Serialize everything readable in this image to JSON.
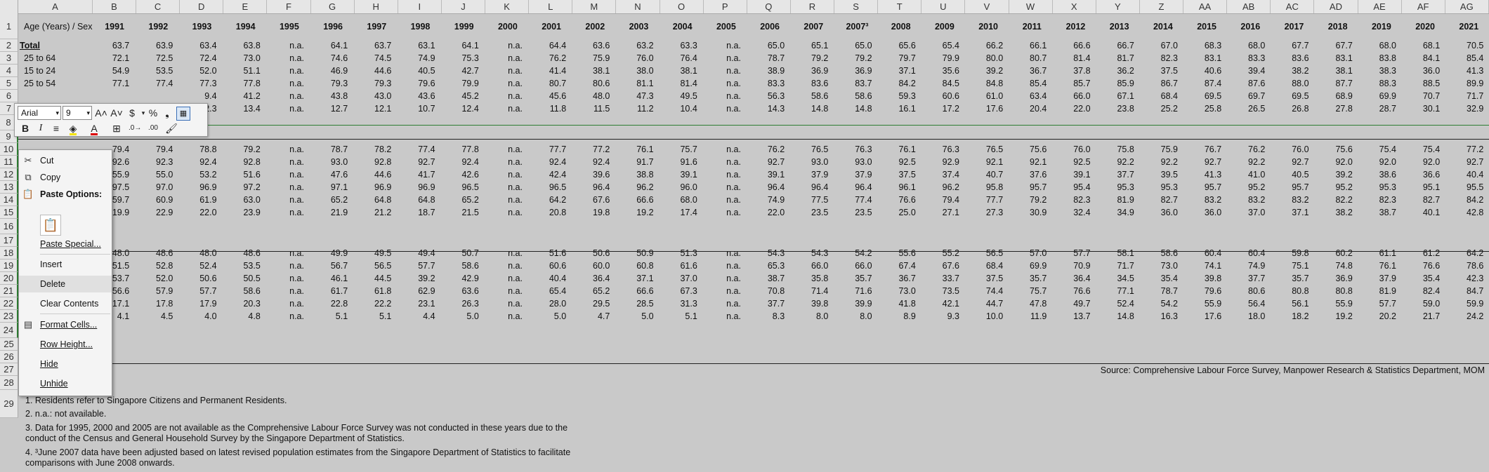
{
  "columns": [
    "A",
    "B",
    "C",
    "D",
    "E",
    "F",
    "G",
    "H",
    "I",
    "J",
    "K",
    "L",
    "M",
    "N",
    "O",
    "P",
    "Q",
    "R",
    "S",
    "T",
    "U",
    "V",
    "W",
    "X",
    "Y",
    "Z",
    "AA",
    "AB",
    "AC",
    "AD",
    "AE",
    "AF",
    "AG"
  ],
  "row_numbers": [
    "1",
    "2",
    "3",
    "4",
    "5",
    "6",
    "7",
    "8",
    "9",
    "10",
    "11",
    "12",
    "13",
    "14",
    "15",
    "16",
    "17",
    "18",
    "19",
    "20",
    "21",
    "22",
    "23",
    "24",
    "25",
    "26",
    "27",
    "28",
    "29"
  ],
  "header": {
    "label": "Age (Years) / Sex",
    "years": [
      "1991",
      "1992",
      "1993",
      "1994",
      "1995",
      "1996",
      "1997",
      "1998",
      "1999",
      "2000",
      "2001",
      "2002",
      "2003",
      "2004",
      "2005",
      "2006",
      "2007",
      "2007³",
      "2008",
      "2009",
      "2010",
      "2011",
      "2012",
      "2013",
      "2014",
      "2015",
      "2016",
      "2017",
      "2018",
      "2019",
      "2020",
      "2021"
    ]
  },
  "rows_top": [
    {
      "label": "Total",
      "values": [
        "63.7",
        "63.9",
        "63.4",
        "63.8",
        "n.a.",
        "64.1",
        "63.7",
        "63.1",
        "64.1",
        "n.a.",
        "64.4",
        "63.6",
        "63.2",
        "63.3",
        "n.a.",
        "65.0",
        "65.1",
        "65.0",
        "65.6",
        "65.4",
        "66.2",
        "66.1",
        "66.6",
        "66.7",
        "67.0",
        "68.3",
        "68.0",
        "67.7",
        "67.7",
        "68.0",
        "68.1",
        "70.5"
      ]
    },
    {
      "label": "25 to 64",
      "values": [
        "72.1",
        "72.5",
        "72.4",
        "73.0",
        "n.a.",
        "74.6",
        "74.5",
        "74.9",
        "75.3",
        "n.a.",
        "76.2",
        "75.9",
        "76.0",
        "76.4",
        "n.a.",
        "78.7",
        "79.2",
        "79.2",
        "79.7",
        "79.9",
        "80.0",
        "80.7",
        "81.4",
        "81.7",
        "82.3",
        "83.1",
        "83.3",
        "83.6",
        "83.1",
        "83.8",
        "84.1",
        "85.4"
      ]
    },
    {
      "label": "15 to 24",
      "values": [
        "54.9",
        "53.5",
        "52.0",
        "51.1",
        "n.a.",
        "46.9",
        "44.6",
        "40.5",
        "42.7",
        "n.a.",
        "41.4",
        "38.1",
        "38.0",
        "38.1",
        "n.a.",
        "38.9",
        "36.9",
        "36.9",
        "37.1",
        "35.6",
        "39.2",
        "36.7",
        "37.8",
        "36.2",
        "37.5",
        "40.6",
        "39.4",
        "38.2",
        "38.1",
        "38.3",
        "36.0",
        "41.3"
      ]
    },
    {
      "label": "25 to 54",
      "values": [
        "77.1",
        "77.4",
        "77.3",
        "77.8",
        "n.a.",
        "79.3",
        "79.3",
        "79.6",
        "79.9",
        "n.a.",
        "80.7",
        "80.6",
        "81.1",
        "81.4",
        "n.a.",
        "83.3",
        "83.6",
        "83.7",
        "84.2",
        "84.5",
        "84.8",
        "85.4",
        "85.7",
        "85.9",
        "86.7",
        "87.4",
        "87.6",
        "88.0",
        "87.7",
        "88.3",
        "88.5",
        "89.9"
      ]
    },
    {
      "label": "",
      "values": [
        "",
        "",
        "9.4",
        "41.2",
        "n.a.",
        "43.8",
        "43.0",
        "43.6",
        "45.2",
        "n.a.",
        "45.6",
        "48.0",
        "47.3",
        "49.5",
        "n.a.",
        "56.3",
        "58.6",
        "58.6",
        "59.3",
        "60.6",
        "61.0",
        "63.4",
        "66.0",
        "67.1",
        "68.4",
        "69.5",
        "69.7",
        "69.5",
        "68.9",
        "69.9",
        "70.7",
        "71.7"
      ]
    },
    {
      "label": "",
      "values": [
        "",
        "",
        "2.3",
        "13.4",
        "n.a.",
        "12.7",
        "12.1",
        "10.7",
        "12.4",
        "n.a.",
        "11.8",
        "11.5",
        "11.2",
        "10.4",
        "n.a.",
        "14.3",
        "14.8",
        "14.8",
        "16.1",
        "17.2",
        "17.6",
        "20.4",
        "22.0",
        "23.8",
        "25.2",
        "25.8",
        "26.5",
        "26.8",
        "27.8",
        "28.7",
        "30.1",
        "32.9"
      ]
    }
  ],
  "rows_male": [
    [
      "79.4",
      "79.4",
      "78.8",
      "79.2",
      "n.a.",
      "78.7",
      "78.2",
      "77.4",
      "77.8",
      "n.a.",
      "77.7",
      "77.2",
      "76.1",
      "75.7",
      "n.a.",
      "76.2",
      "76.5",
      "76.3",
      "76.1",
      "76.3",
      "76.5",
      "75.6",
      "76.0",
      "75.8",
      "75.9",
      "76.7",
      "76.2",
      "76.0",
      "75.6",
      "75.4",
      "75.4",
      "77.2"
    ],
    [
      "92.6",
      "92.3",
      "92.4",
      "92.8",
      "n.a.",
      "93.0",
      "92.8",
      "92.7",
      "92.4",
      "n.a.",
      "92.4",
      "92.4",
      "91.7",
      "91.6",
      "n.a.",
      "92.7",
      "93.0",
      "93.0",
      "92.5",
      "92.9",
      "92.1",
      "92.1",
      "92.5",
      "92.2",
      "92.2",
      "92.7",
      "92.2",
      "92.7",
      "92.0",
      "92.0",
      "92.0",
      "92.7"
    ],
    [
      "55.9",
      "55.0",
      "53.2",
      "51.6",
      "n.a.",
      "47.6",
      "44.6",
      "41.7",
      "42.6",
      "n.a.",
      "42.4",
      "39.6",
      "38.8",
      "39.1",
      "n.a.",
      "39.1",
      "37.9",
      "37.9",
      "37.5",
      "37.4",
      "40.7",
      "37.6",
      "39.1",
      "37.7",
      "39.5",
      "41.3",
      "41.0",
      "40.5",
      "39.2",
      "38.6",
      "36.6",
      "40.4"
    ],
    [
      "97.5",
      "97.0",
      "96.9",
      "97.2",
      "n.a.",
      "97.1",
      "96.9",
      "96.9",
      "96.5",
      "n.a.",
      "96.5",
      "96.4",
      "96.2",
      "96.0",
      "n.a.",
      "96.4",
      "96.4",
      "96.4",
      "96.1",
      "96.2",
      "95.8",
      "95.7",
      "95.4",
      "95.3",
      "95.3",
      "95.7",
      "95.2",
      "95.7",
      "95.2",
      "95.3",
      "95.1",
      "95.5"
    ],
    [
      "59.7",
      "60.9",
      "61.9",
      "63.0",
      "n.a.",
      "65.2",
      "64.8",
      "64.8",
      "65.2",
      "n.a.",
      "64.2",
      "67.6",
      "66.6",
      "68.0",
      "n.a.",
      "74.9",
      "77.5",
      "77.4",
      "76.6",
      "79.4",
      "77.7",
      "79.2",
      "82.3",
      "81.9",
      "82.7",
      "83.2",
      "83.2",
      "83.2",
      "82.2",
      "82.3",
      "82.7",
      "84.2"
    ],
    [
      "19.9",
      "22.9",
      "22.0",
      "23.9",
      "n.a.",
      "21.9",
      "21.2",
      "18.7",
      "21.5",
      "n.a.",
      "20.8",
      "19.8",
      "19.2",
      "17.4",
      "n.a.",
      "22.0",
      "23.5",
      "23.5",
      "25.0",
      "27.1",
      "27.3",
      "30.9",
      "32.4",
      "34.9",
      "36.0",
      "36.0",
      "37.0",
      "37.1",
      "38.2",
      "38.7",
      "40.1",
      "42.8"
    ]
  ],
  "rows_female": [
    [
      "48.0",
      "48.6",
      "48.0",
      "48.6",
      "n.a.",
      "49.9",
      "49.5",
      "49.4",
      "50.7",
      "n.a.",
      "51.6",
      "50.6",
      "50.9",
      "51.3",
      "n.a.",
      "54.3",
      "54.3",
      "54.2",
      "55.6",
      "55.2",
      "56.5",
      "57.0",
      "57.7",
      "58.1",
      "58.6",
      "60.4",
      "60.4",
      "59.8",
      "60.2",
      "61.1",
      "61.2",
      "64.2"
    ],
    [
      "51.5",
      "52.8",
      "52.4",
      "53.5",
      "n.a.",
      "56.7",
      "56.5",
      "57.7",
      "58.6",
      "n.a.",
      "60.6",
      "60.0",
      "60.8",
      "61.6",
      "n.a.",
      "65.3",
      "66.0",
      "66.0",
      "67.4",
      "67.6",
      "68.4",
      "69.9",
      "70.9",
      "71.7",
      "73.0",
      "74.1",
      "74.9",
      "75.1",
      "74.8",
      "76.1",
      "76.6",
      "78.6"
    ],
    [
      "53.7",
      "52.0",
      "50.6",
      "50.5",
      "n.a.",
      "46.1",
      "44.5",
      "39.2",
      "42.9",
      "n.a.",
      "40.4",
      "36.4",
      "37.1",
      "37.0",
      "n.a.",
      "38.7",
      "35.8",
      "35.7",
      "36.7",
      "33.7",
      "37.5",
      "35.7",
      "36.4",
      "34.5",
      "35.4",
      "39.8",
      "37.7",
      "35.7",
      "36.9",
      "37.9",
      "35.4",
      "42.3"
    ],
    [
      "56.6",
      "57.9",
      "57.7",
      "58.6",
      "n.a.",
      "61.7",
      "61.8",
      "62.9",
      "63.6",
      "n.a.",
      "65.4",
      "65.2",
      "66.6",
      "67.3",
      "n.a.",
      "70.8",
      "71.4",
      "71.6",
      "73.0",
      "73.5",
      "74.4",
      "75.7",
      "76.6",
      "77.1",
      "78.7",
      "79.6",
      "80.6",
      "80.8",
      "80.8",
      "81.9",
      "82.4",
      "84.7"
    ],
    [
      "17.1",
      "17.8",
      "17.9",
      "20.3",
      "n.a.",
      "22.8",
      "22.2",
      "23.1",
      "26.3",
      "n.a.",
      "28.0",
      "29.5",
      "28.5",
      "31.3",
      "n.a.",
      "37.7",
      "39.8",
      "39.9",
      "41.8",
      "42.1",
      "44.7",
      "47.8",
      "49.7",
      "52.4",
      "54.2",
      "55.9",
      "56.4",
      "56.1",
      "55.9",
      "57.7",
      "59.0",
      "59.9"
    ],
    [
      "4.1",
      "4.5",
      "4.0",
      "4.8",
      "n.a.",
      "5.1",
      "5.1",
      "4.4",
      "5.0",
      "n.a.",
      "5.0",
      "4.7",
      "5.0",
      "5.1",
      "n.a.",
      "8.3",
      "8.0",
      "8.0",
      "8.9",
      "9.3",
      "10.0",
      "11.9",
      "13.7",
      "14.8",
      "16.3",
      "17.6",
      "18.0",
      "18.2",
      "19.2",
      "20.2",
      "21.7",
      "24.2"
    ]
  ],
  "source": "Source: Comprehensive Labour Force Survey, Manpower Research & Statistics Department, MOM",
  "notes": [
    "1. Residents refer to Singapore Citizens and Permanent Residents.",
    "2. n.a.: not available.",
    "3. Data for 1995, 2000 and 2005 are not available as the Comprehensive Labour Force Survey was not conducted in these years due to the",
    "conduct of the Census and General Household Survey by the Singapore Department of Statistics.",
    "4. ³June 2007 data have been adjusted based on latest revised population estimates from the Singapore Department of Statistics to facilitate",
    "comparisons with June 2008 onwards."
  ],
  "toolbar": {
    "font_name": "Arial",
    "font_size": "9",
    "icons": [
      "font-grow-icon",
      "font-shrink-icon",
      "currency-icon",
      "dropdown-icon",
      "percent-icon",
      "comma-icon",
      "format-table-icon",
      "bold-icon",
      "italic-icon",
      "align-center-icon",
      "fill-color-icon",
      "font-color-icon",
      "borders-icon",
      "increase-decimal-icon",
      "decrease-decimal-icon",
      "format-painter-icon"
    ],
    "glyphs": {
      "grow": "A˄",
      "shrink": "A˅",
      "currency": "$",
      "percent": "%",
      "comma": "❟",
      "bold": "B",
      "italic": "I"
    }
  },
  "context_menu": {
    "cut": "Cut",
    "copy": "Copy",
    "paste_options": "Paste Options:",
    "paste_special": "Paste Special...",
    "insert": "Insert",
    "delete": "Delete",
    "clear_contents": "Clear Contents",
    "format_cells": "Format Cells...",
    "row_height": "Row Height...",
    "hide": "Hide",
    "unhide": "Unhide"
  }
}
